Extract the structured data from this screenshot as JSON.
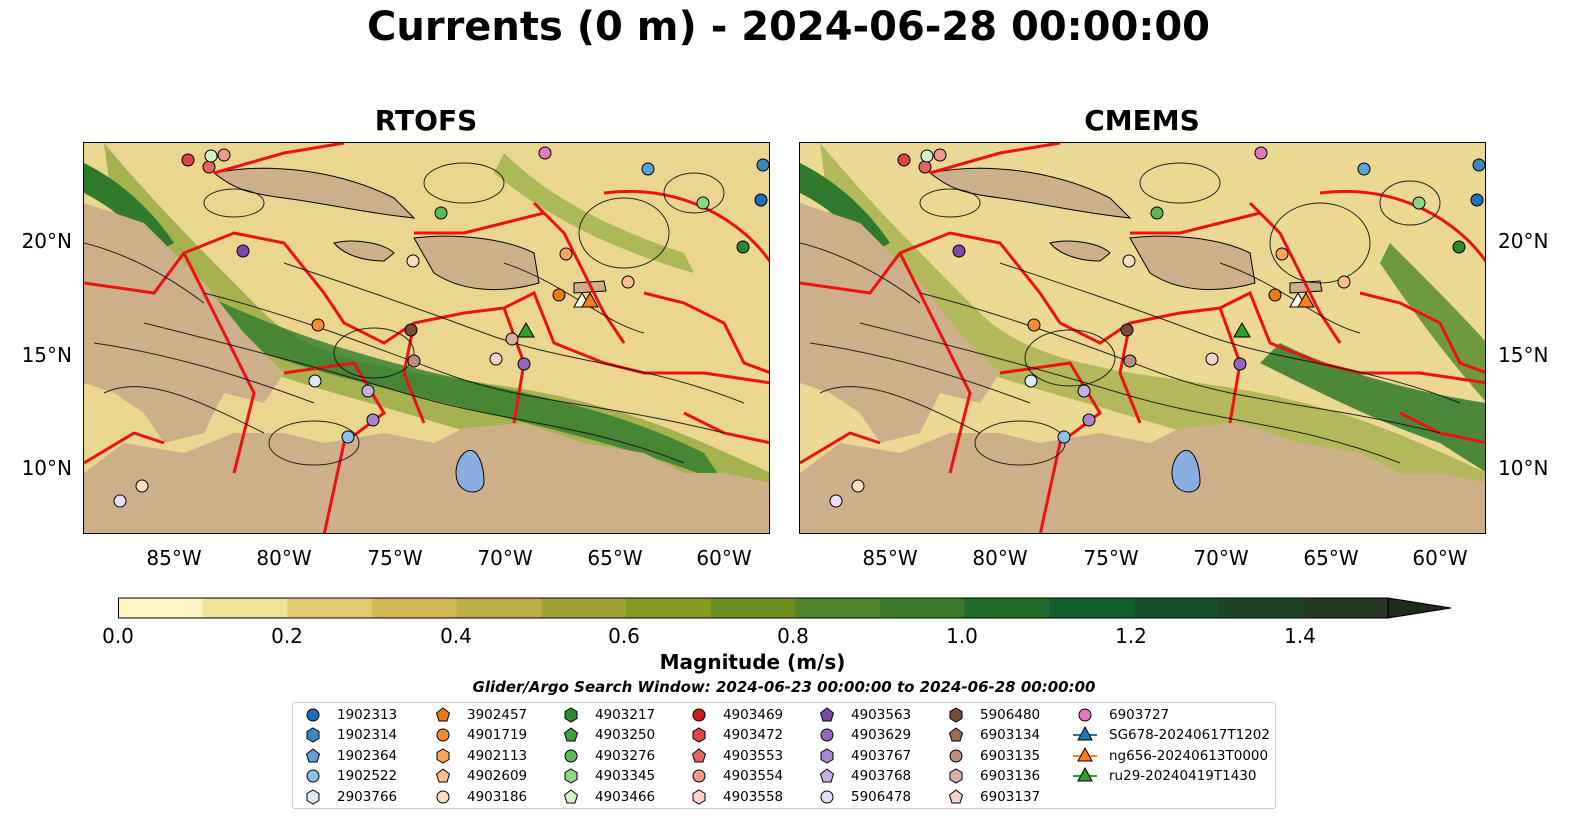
{
  "title": "Currents (0 m) - 2024-06-28 00:00:00",
  "panels": [
    {
      "title": "RTOFS"
    },
    {
      "title": "CMEMS"
    }
  ],
  "axes": {
    "lat_labels": [
      "20°N",
      "15°N",
      "10°N"
    ],
    "lon_labels": [
      "85°W",
      "80°W",
      "75°W",
      "70°W",
      "65°W",
      "60°W"
    ]
  },
  "colorbar": {
    "label": "Magnitude (m/s)",
    "ticks": [
      "0.0",
      "0.2",
      "0.4",
      "0.6",
      "0.8",
      "1.0",
      "1.2",
      "1.4"
    ],
    "range": [
      0.0,
      1.5
    ],
    "extend": "max",
    "colors": [
      "#fdf6c3",
      "#f1e29a",
      "#e2cb74",
      "#d2b958",
      "#bfad47",
      "#a3a135",
      "#869a22",
      "#6b8e1f",
      "#52832a",
      "#3d7a2c",
      "#226c2c",
      "#105f2c",
      "#16512b",
      "#1f4426",
      "#253823",
      "#1d2b1a"
    ]
  },
  "search_window": "Glider/Argo Search Window: 2024-06-23 00:00:00 to 2024-06-28 00:00:00",
  "legend": [
    {
      "label": "1902313",
      "marker": "circle",
      "color": "#1f6fb4"
    },
    {
      "label": "1902314",
      "marker": "hexagon",
      "color": "#3d87c0"
    },
    {
      "label": "1902364",
      "marker": "pentagon",
      "color": "#5fa0d6"
    },
    {
      "label": "1902522",
      "marker": "circle",
      "color": "#8fc0e8"
    },
    {
      "label": "2903766",
      "marker": "hexagon",
      "color": "#dbeaf7"
    },
    {
      "label": "3902457",
      "marker": "pentagon",
      "color": "#ee7a12"
    },
    {
      "label": "4901719",
      "marker": "circle",
      "color": "#f68d35"
    },
    {
      "label": "4902113",
      "marker": "hexagon",
      "color": "#f9a35c"
    },
    {
      "label": "4902609",
      "marker": "pentagon",
      "color": "#fbc087"
    },
    {
      "label": "4903186",
      "marker": "circle",
      "color": "#fde0c2"
    },
    {
      "label": "4903217",
      "marker": "hexagon",
      "color": "#2a8a2e"
    },
    {
      "label": "4903250",
      "marker": "pentagon",
      "color": "#3f9e3f"
    },
    {
      "label": "4903276",
      "marker": "circle",
      "color": "#5cba52"
    },
    {
      "label": "4903345",
      "marker": "hexagon",
      "color": "#8fd584"
    },
    {
      "label": "4903466",
      "marker": "pentagon",
      "color": "#d2f2c8"
    },
    {
      "label": "4903469",
      "marker": "circle",
      "color": "#c8201f"
    },
    {
      "label": "4903472",
      "marker": "hexagon",
      "color": "#dd4444"
    },
    {
      "label": "4903553",
      "marker": "pentagon",
      "color": "#e56565"
    },
    {
      "label": "4903554",
      "marker": "circle",
      "color": "#f09a8e"
    },
    {
      "label": "4903558",
      "marker": "hexagon",
      "color": "#fbd2cb"
    },
    {
      "label": "4903563",
      "marker": "pentagon",
      "color": "#7d4aa8"
    },
    {
      "label": "4903629",
      "marker": "circle",
      "color": "#9366c0"
    },
    {
      "label": "4903767",
      "marker": "hexagon",
      "color": "#a988d2"
    },
    {
      "label": "4903768",
      "marker": "pentagon",
      "color": "#c7b1e4"
    },
    {
      "label": "5906478",
      "marker": "circle",
      "color": "#eadff7"
    },
    {
      "label": "5906480",
      "marker": "hexagon",
      "color": "#7a4b3a"
    },
    {
      "label": "6903134",
      "marker": "pentagon",
      "color": "#9b6b5c"
    },
    {
      "label": "6903135",
      "marker": "circle",
      "color": "#bb8c7e"
    },
    {
      "label": "6903136",
      "marker": "hexagon",
      "color": "#d8ada3"
    },
    {
      "label": "6903137",
      "marker": "pentagon",
      "color": "#f4d3cc"
    },
    {
      "label": "6903727",
      "marker": "circle",
      "color": "#e377c2"
    },
    {
      "label": "SG678-20240617T1202",
      "marker": "triangle-line",
      "color": "#1f77b4"
    },
    {
      "label": "ng656-20240613T0000",
      "marker": "triangle-line",
      "color": "#ff7f0e"
    },
    {
      "label": "ru29-20240419T1430",
      "marker": "triangle-line",
      "color": "#2ca02c"
    }
  ]
}
